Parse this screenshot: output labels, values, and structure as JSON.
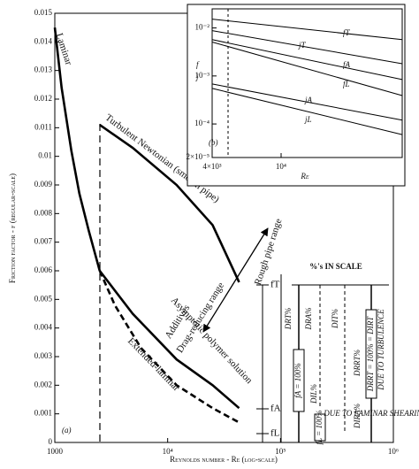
{
  "chart_data": [
    {
      "type": "line",
      "xscale": "log",
      "x_label": "Reynolds number - Re (log-scale)",
      "y_label": "Friction factor - f (regular-scale)",
      "xlim": [
        1000,
        1000000
      ],
      "ylim": [
        0,
        0.015
      ],
      "xticks": [
        1000,
        {
          "value": 10000,
          "label": "10⁴"
        },
        {
          "value": 100000,
          "label": "10⁵"
        },
        {
          "value": 1000000,
          "label": "10⁶"
        }
      ],
      "yticks": [
        0,
        0.001,
        0.002,
        0.003,
        0.004,
        0.005,
        0.006,
        0.007,
        0.008,
        0.009,
        0.01,
        0.011,
        0.012,
        0.013,
        0.014,
        0.015
      ],
      "series": [
        {
          "name": "Laminar",
          "color": "#000000",
          "style": "solid",
          "x": [
            1000,
            1150,
            1400,
            1650,
            2000,
            2500
          ],
          "values": [
            0.0145,
            0.0124,
            0.0102,
            0.0087,
            0.0074,
            0.006
          ]
        },
        {
          "name": "Turbulent Newtonian (smooth pipe)",
          "color": "#000000",
          "style": "solid",
          "x": [
            2500,
            4900,
            12000,
            25000,
            43000
          ],
          "values": [
            0.0111,
            0.0103,
            0.009,
            0.0076,
            0.0056
          ]
        },
        {
          "name": "Asymptotic polymer solution",
          "color": "#000000",
          "style": "solid",
          "x": [
            2500,
            4900,
            12000,
            25000,
            43000
          ],
          "values": [
            0.006,
            0.0045,
            0.0029,
            0.002,
            0.0012
          ]
        },
        {
          "name": "Extended-laminar",
          "color": "#000000",
          "style": "dashed",
          "x": [
            2500,
            3400,
            5800,
            12000,
            25000,
            43000
          ],
          "values": [
            0.006,
            0.0048,
            0.0033,
            0.002,
            0.0012,
            0.0007
          ]
        }
      ],
      "annotations": [
        "(a)",
        "Additives",
        "Drag-reducing range",
        "Rough pipe range",
        "fT",
        "fA",
        "fL"
      ]
    },
    {
      "type": "line",
      "xscale": "log",
      "yscale": "log",
      "panel_label": "(b)",
      "x_label": "Re",
      "y_labels": [
        "f",
        "j"
      ],
      "xlim": [
        4000,
        50000
      ],
      "ylim": [
        2e-05,
        0.025
      ],
      "xticks": [
        {
          "value": 4000,
          "label": "4×10³"
        },
        {
          "value": 10000,
          "label": "10⁴"
        }
      ],
      "yticks": [
        {
          "value": 0.01,
          "label": "10⁻²"
        },
        {
          "value": 0.001,
          "label": "10⁻³"
        },
        {
          "value": 0.0001,
          "label": "10⁻⁴"
        },
        {
          "value": 2e-05,
          "label": "2×10⁻⁵"
        }
      ],
      "series": [
        {
          "name": "fT",
          "color": "#000000",
          "x": [
            4000,
            50000
          ],
          "values": [
            0.0153,
            0.0057
          ]
        },
        {
          "name": "jT",
          "color": "#000000",
          "x": [
            4000,
            50000
          ],
          "values": [
            0.0088,
            0.0018
          ]
        },
        {
          "name": "fA",
          "color": "#000000",
          "x": [
            4000,
            50000
          ],
          "values": [
            0.0057,
            0.00084
          ]
        },
        {
          "name": "fL",
          "color": "#000000",
          "x": [
            4000,
            50000
          ],
          "values": [
            0.0051,
            0.00039
          ]
        },
        {
          "name": "jA",
          "color": "#000000",
          "x": [
            4000,
            50000
          ],
          "values": [
            0.00068,
            0.00012
          ]
        },
        {
          "name": "jL",
          "color": "#000000",
          "x": [
            4000,
            50000
          ],
          "values": [
            0.00055,
            6e-05
          ]
        }
      ]
    }
  ],
  "scale_panel": {
    "title": "%'s IN SCALE",
    "labels": [
      "DRT%",
      "fA = 100%",
      "DRA%",
      "DIL%",
      "fL = 100%",
      "DIT%",
      "DRRT%",
      "DRRT = 100% = DIRT",
      "DUE TO TURBULENCE",
      "DIRA%",
      "DUE TO LAMINAR SHEARING"
    ]
  }
}
